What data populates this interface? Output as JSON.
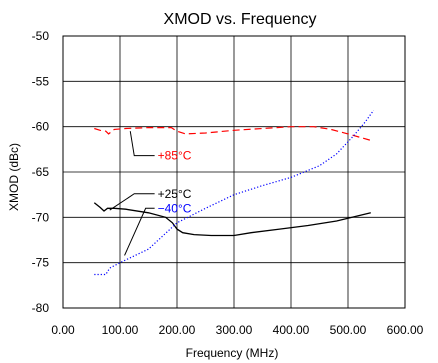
{
  "chart_data": {
    "type": "line",
    "title": "XMOD vs. Frequency",
    "xlabel": "Frequency (MHz)",
    "ylabel": "XMOD (dBc)",
    "xlim": [
      0,
      600
    ],
    "ylim": [
      -80,
      -50
    ],
    "x_ticks": [
      0,
      100,
      200,
      300,
      400,
      500,
      600
    ],
    "x_tick_labels": [
      "0.00",
      "100.00",
      "200.00",
      "300.00",
      "400.00",
      "500.00",
      "600.00"
    ],
    "y_ticks": [
      -80,
      -75,
      -70,
      -65,
      -60,
      -55,
      -50
    ],
    "y_tick_labels": [
      "-80",
      "-75",
      "-70",
      "-65",
      "-60",
      "-55",
      "-50"
    ],
    "grid": true,
    "series": [
      {
        "name": "+85°C",
        "color": "#ff0000",
        "style": "dashed",
        "points": [
          [
            55,
            -60.2
          ],
          [
            65,
            -60.4
          ],
          [
            75,
            -60.5
          ],
          [
            80,
            -60.8
          ],
          [
            90,
            -60.3
          ],
          [
            110,
            -60.2
          ],
          [
            150,
            -60.1
          ],
          [
            190,
            -60.1
          ],
          [
            200,
            -60.5
          ],
          [
            215,
            -60.8
          ],
          [
            250,
            -60.7
          ],
          [
            300,
            -60.4
          ],
          [
            350,
            -60.2
          ],
          [
            400,
            -60.0
          ],
          [
            440,
            -60.0
          ],
          [
            470,
            -60.3
          ],
          [
            500,
            -60.8
          ],
          [
            545,
            -61.6
          ]
        ]
      },
      {
        "name": "+25°C",
        "color": "#000000",
        "style": "solid",
        "points": [
          [
            55,
            -68.4
          ],
          [
            65,
            -68.9
          ],
          [
            72,
            -69.3
          ],
          [
            78,
            -69.0
          ],
          [
            90,
            -69.0
          ],
          [
            110,
            -69.1
          ],
          [
            150,
            -69.5
          ],
          [
            180,
            -70.0
          ],
          [
            192,
            -70.6
          ],
          [
            200,
            -71.3
          ],
          [
            210,
            -71.7
          ],
          [
            230,
            -71.9
          ],
          [
            260,
            -72.0
          ],
          [
            300,
            -72.0
          ],
          [
            330,
            -71.7
          ],
          [
            380,
            -71.3
          ],
          [
            430,
            -70.9
          ],
          [
            480,
            -70.4
          ],
          [
            540,
            -69.5
          ]
        ]
      },
      {
        "name": "−40°C",
        "color": "#0000ff",
        "style": "dotted",
        "points": [
          [
            55,
            -76.3
          ],
          [
            75,
            -76.3
          ],
          [
            82,
            -75.6
          ],
          [
            100,
            -75.0
          ],
          [
            150,
            -73.5
          ],
          [
            200,
            -70.6
          ],
          [
            250,
            -69.0
          ],
          [
            300,
            -67.5
          ],
          [
            350,
            -66.5
          ],
          [
            400,
            -65.6
          ],
          [
            450,
            -64.3
          ],
          [
            480,
            -63.0
          ],
          [
            510,
            -61.0
          ],
          [
            530,
            -59.5
          ],
          [
            545,
            -58.2
          ]
        ]
      }
    ],
    "annotations": [
      {
        "text": "+85°C",
        "color": "#ff0000",
        "label_at": [
          166,
          -63.2
        ],
        "line_to": [
          118,
          -60.5
        ],
        "elbow": [
          125,
          -63.2
        ]
      },
      {
        "text": "+25°C",
        "color": "#000000",
        "label_at": [
          166,
          -67.4
        ],
        "line_to": [
          82,
          -69.2
        ],
        "elbow": [
          125,
          -67.4
        ]
      },
      {
        "text": "−40°C",
        "color": "#0000ff",
        "label_at": [
          166,
          -69.0
        ],
        "line_to": [
          108,
          -74.2
        ],
        "elbow": [
          145,
          -69.0
        ]
      }
    ]
  }
}
